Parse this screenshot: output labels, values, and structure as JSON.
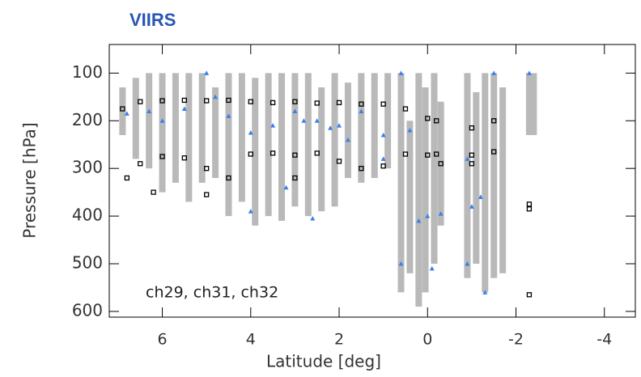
{
  "chart_data": {
    "type": "scatter",
    "title": "VIIRS",
    "annotation": "ch29, ch31, ch32",
    "x_label": "Latitude [deg]",
    "y_label": "Pressure [hPa]",
    "xlim": [
      7.2,
      -4.7
    ],
    "ylim": [
      612,
      40
    ],
    "xticks": [
      6,
      4,
      2,
      0,
      -2,
      -4
    ],
    "yticks": [
      100,
      200,
      300,
      400,
      500,
      600
    ],
    "ranges": {
      "color": "#b9b9b9",
      "x": [
        6.9,
        6.6,
        6.3,
        6.0,
        5.7,
        5.4,
        5.1,
        4.8,
        4.5,
        4.2,
        3.9,
        3.6,
        3.3,
        3.0,
        2.7,
        2.4,
        2.1,
        1.8,
        1.5,
        1.2,
        0.9,
        0.6,
        0.4,
        0.2,
        0.05,
        -0.15,
        -0.3,
        -0.9,
        -1.1,
        -1.3,
        -1.5,
        -1.7,
        -2.3,
        -2.4
      ],
      "low": [
        130,
        110,
        100,
        100,
        100,
        100,
        100,
        130,
        100,
        100,
        110,
        100,
        100,
        100,
        100,
        130,
        100,
        120,
        100,
        100,
        100,
        100,
        200,
        100,
        130,
        100,
        160,
        100,
        140,
        100,
        100,
        130,
        100,
        100
      ],
      "high": [
        230,
        280,
        300,
        350,
        330,
        370,
        330,
        320,
        400,
        370,
        420,
        400,
        410,
        380,
        400,
        390,
        380,
        320,
        330,
        320,
        300,
        560,
        520,
        590,
        560,
        500,
        420,
        530,
        500,
        560,
        530,
        520,
        230,
        230
      ]
    },
    "squares": {
      "color": "#000000",
      "x": [
        6.9,
        6.5,
        6.0,
        5.5,
        5.0,
        4.5,
        4.0,
        3.5,
        3.0,
        2.5,
        2.0,
        1.5,
        1.0,
        0.5,
        0.0,
        -0.2,
        6.5,
        6.0,
        5.5,
        5.0,
        4.5,
        4.0,
        3.5,
        3.0,
        2.5,
        2.0,
        1.5,
        1.0,
        0.5,
        0.0,
        -0.2,
        -1.0,
        -1.5,
        6.8,
        6.2,
        5.0,
        3.0,
        -1.0,
        -1.5,
        -2.3,
        -2.3,
        -2.3,
        -0.3,
        -1.0
      ],
      "y": [
        175,
        160,
        158,
        157,
        158,
        157,
        160,
        162,
        160,
        163,
        162,
        165,
        165,
        175,
        195,
        200,
        290,
        275,
        278,
        300,
        320,
        270,
        268,
        272,
        268,
        285,
        300,
        295,
        270,
        272,
        270,
        272,
        265,
        320,
        350,
        355,
        320,
        215,
        200,
        375,
        385,
        565,
        290,
        290
      ]
    },
    "triangles": {
      "color": "#3a80e8",
      "x": [
        6.8,
        6.3,
        6.0,
        5.5,
        5.0,
        4.8,
        4.5,
        4.0,
        4.0,
        3.5,
        3.0,
        2.8,
        2.5,
        2.2,
        2.0,
        1.8,
        1.5,
        1.0,
        1.0,
        0.6,
        0.6,
        0.4,
        0.2,
        0.0,
        -0.1,
        -0.3,
        -0.9,
        -0.9,
        -1.0,
        -1.2,
        -1.3,
        -1.5,
        -2.3,
        3.2,
        2.6
      ],
      "y": [
        185,
        180,
        200,
        175,
        100,
        150,
        190,
        225,
        390,
        210,
        180,
        200,
        200,
        215,
        210,
        240,
        180,
        230,
        280,
        100,
        500,
        220,
        410,
        400,
        510,
        395,
        280,
        500,
        380,
        360,
        560,
        100,
        100,
        340,
        405
      ]
    }
  }
}
